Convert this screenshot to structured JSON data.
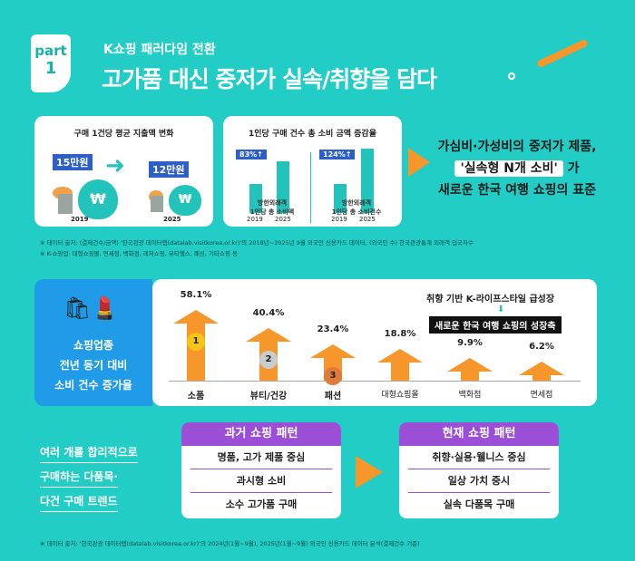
{
  "header": {
    "part_label": "part",
    "part_number": "1",
    "subtitle": "K쇼핑 패러다임 전환",
    "title": "고가품 대신 중저가 실속/취향을 담다"
  },
  "card1": {
    "title": "구매 1건당 평균 지출액 변화",
    "from_value": "15만원",
    "from_year": "2019",
    "to_value": "12만원",
    "to_year": "2025",
    "bag_symbol": "₩"
  },
  "card2": {
    "title": "1인당 구매 건수 총 소비 금액 증감율",
    "left": {
      "badge": "83%↑",
      "years": [
        "2019",
        "2025"
      ],
      "caption": [
        "방한외래객",
        "1인당 총 소비액"
      ],
      "values": [
        100,
        183
      ]
    },
    "right": {
      "badge": "124%↑",
      "years": [
        "2019",
        "2025"
      ],
      "caption": [
        "방한외래객",
        "1인당 총 소비건수"
      ],
      "values": [
        100,
        224
      ]
    }
  },
  "tagline": {
    "line1": "가심비·가성비의 중저가 제품,",
    "highlight": "'실속형 N개 소비'",
    "line2_suffix": " 가",
    "line3": "새로운 한국 여행 쇼핑의 표준"
  },
  "notes_top": [
    "※ 데이터 출처: (결제건수/금액) '한국관광 데이터랩(datalab.visitkorea.or.kr)'의 2018년~2025년 9월 외국인 신용카드 데이터, (외국인 수) 한국관광통계 외래객 입국자수",
    "※ K-쇼핑업: 대형쇼핑몰, 면세점, 백화점, 레저쇼핑, 뷰티헬스, 패션, 기타쇼핑 등"
  ],
  "side_panel": {
    "lines": [
      "쇼핑업종",
      "전년 동기 대비",
      "소비 건수 증가율"
    ]
  },
  "callout": {
    "text": "취향 기반 K-라이프스타일 급성장",
    "box": "새로운 한국 여행 쇼핑의 성장축"
  },
  "chart_data": {
    "type": "bar",
    "categories": [
      "소품",
      "뷰티/건강",
      "패션",
      "대형쇼핑몰",
      "백화점",
      "면세점"
    ],
    "values": [
      58.1,
      40.4,
      23.4,
      18.8,
      9.9,
      6.2
    ],
    "labels": [
      "58.1%",
      "40.4%",
      "23.4%",
      "18.8%",
      "9.9%",
      "6.2%"
    ],
    "ranks": [
      "1",
      "2",
      "3"
    ],
    "color": "#f7962b"
  },
  "left_text": [
    "여러 개를 합리적으로",
    "구매하는 다품목·",
    "다건 구매 트렌드"
  ],
  "past": {
    "title": "과거 쇼핑 패턴",
    "items": [
      "명품, 고가 제품 중심",
      "과시형 소비",
      "소수 고가품 구매"
    ]
  },
  "present": {
    "title": "현재 쇼핑 패턴",
    "items": [
      "취향·실용·웰니스 중심",
      "일상 가치 중시",
      "실속 다품목 구매"
    ]
  },
  "note_bottom": "※ 데이터 출처: '한국관광 데이터랩(datalab.visitkorea.or.kr)'의 2024년(1월~9월), 2025년(1월~9월) 외국인 신용카드 데이터 분석(결제건수 기준)",
  "colors": {
    "background": "#21cdc5",
    "accent": "#f7962b",
    "blue": "#1f9be8",
    "purple": "#9b4fd6",
    "badge": "#2d5fc8"
  }
}
